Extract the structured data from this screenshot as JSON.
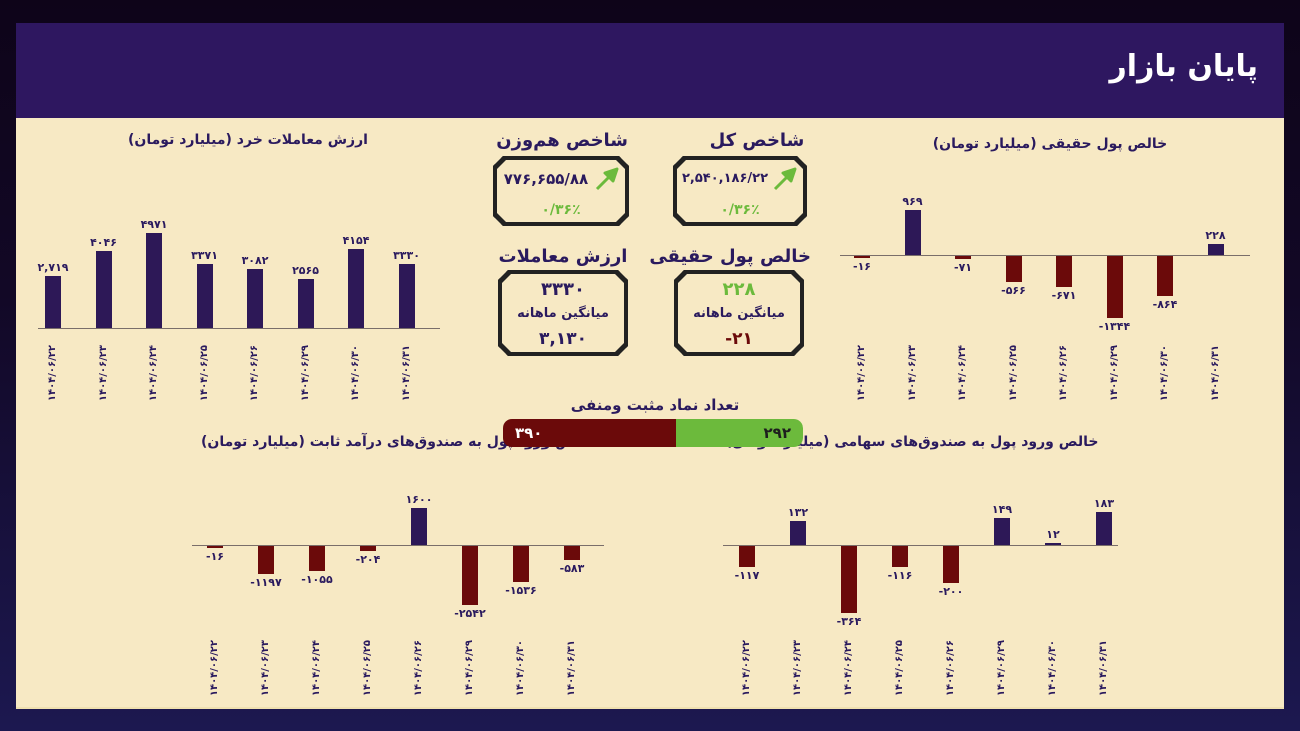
{
  "header": {
    "title": "پایان بازار"
  },
  "colors": {
    "header_bg": "#2e1760",
    "panel_bg": "#f7e9c4",
    "positive_bar": "#2d1857",
    "negative_bar": "#6b0a0a",
    "green": "#6cba3c",
    "text": "#2a1a5e"
  },
  "kpis": {
    "total_index": {
      "title": "شاخص کل",
      "value": "۲,۵۴۰,۱۸۶/۲۲",
      "change": "۰/۳۶٪",
      "icon": "arrow-up-right-icon"
    },
    "equal_weight_index": {
      "title": "شاخص هم‌وزن",
      "value": "۷۷۶,۶۵۵/۸۸",
      "change": "۰/۳۶٪",
      "icon": "arrow-up-right-icon"
    },
    "real_money": {
      "title": "خالص پول حقیقی",
      "value": "۲۲۸",
      "avg_label": "میانگین ماهانه",
      "avg_value": "-۲۱"
    },
    "trade_value": {
      "title": "ارزش معاملات",
      "value": "۳۳۳۰",
      "avg_label": "میانگین ماهانه",
      "avg_value": "۳,۱۳۰"
    }
  },
  "symbol_ratio": {
    "title": "تعداد نماد مثبت ومنفی",
    "negative": "۳۹۰",
    "positive": "۲۹۲",
    "negative_count": 390,
    "positive_count": 292
  },
  "chart_data": [
    {
      "id": "retail_trade_value",
      "type": "bar",
      "title": "ارزش معاملات خرد (میلیارد تومان)",
      "categories": [
        "۱۴۰۴/۰۶/۲۲",
        "۱۴۰۴/۰۶/۲۳",
        "۱۴۰۴/۰۶/۲۴",
        "۱۴۰۴/۰۶/۲۵",
        "۱۴۰۴/۰۶/۲۶",
        "۱۴۰۴/۰۶/۲۹",
        "۱۴۰۴/۰۶/۳۰",
        "۱۴۰۴/۰۶/۳۱"
      ],
      "values": [
        2719,
        4046,
        4971,
        3371,
        3082,
        2565,
        4154,
        3330
      ],
      "labels": [
        "۲,۷۱۹",
        "۴۰۴۶",
        "۴۹۷۱",
        "۳۳۷۱",
        "۳۰۸۲",
        "۲۵۶۵",
        "۴۱۵۴",
        "۳۳۳۰"
      ],
      "xlabel": "",
      "ylabel": "",
      "grid": false
    },
    {
      "id": "real_money_net",
      "type": "bar",
      "title": "خالص پول حقیقی (میلیارد تومان)",
      "categories": [
        "۱۴۰۴/۰۶/۲۲",
        "۱۴۰۴/۰۶/۲۳",
        "۱۴۰۴/۰۶/۲۴",
        "۱۴۰۴/۰۶/۲۵",
        "۱۴۰۴/۰۶/۲۶",
        "۱۴۰۴/۰۶/۲۹",
        "۱۴۰۴/۰۶/۳۰",
        "۱۴۰۴/۰۶/۳۱"
      ],
      "values": [
        -16,
        969,
        -71,
        -566,
        -671,
        -1344,
        -864,
        228
      ],
      "labels": [
        "-۱۶",
        "۹۶۹",
        "-۷۱",
        "-۵۶۶",
        "-۶۷۱",
        "-۱۳۴۴",
        "-۸۶۴",
        "۲۲۸"
      ],
      "xlabel": "",
      "ylabel": "",
      "grid": false
    },
    {
      "id": "fixed_income_fund_inflow",
      "type": "bar",
      "title": "خالص ورود پول به صندوق‌های درآمد ثابت (میلیارد تومان)",
      "categories": [
        "۱۴۰۴/۰۶/۲۲",
        "۱۴۰۴/۰۶/۲۳",
        "۱۴۰۴/۰۶/۲۴",
        "۱۴۰۴/۰۶/۲۵",
        "۱۴۰۴/۰۶/۲۶",
        "۱۴۰۴/۰۶/۲۹",
        "۱۴۰۴/۰۶/۳۰",
        "۱۴۰۴/۰۶/۳۱"
      ],
      "values": [
        -16,
        -1197,
        -1055,
        -204,
        1600,
        -2542,
        -1536,
        -583
      ],
      "labels": [
        "-۱۶",
        "-۱۱۹۷",
        "-۱۰۵۵",
        "-۲۰۴",
        "۱۶۰۰",
        "-۲۵۴۲",
        "-۱۵۳۶",
        "-۵۸۳"
      ],
      "xlabel": "",
      "ylabel": "",
      "grid": false
    },
    {
      "id": "equity_fund_inflow",
      "type": "bar",
      "title": "خالص ورود پول به صندوق‌های سهامی (میلیارد تومان)",
      "categories": [
        "۱۴۰۴/۰۶/۲۲",
        "۱۴۰۴/۰۶/۲۳",
        "۱۴۰۴/۰۶/۲۴",
        "۱۴۰۴/۰۶/۲۵",
        "۱۴۰۴/۰۶/۲۶",
        "۱۴۰۴/۰۶/۲۹",
        "۱۴۰۴/۰۶/۳۰",
        "۱۴۰۴/۰۶/۳۱"
      ],
      "values": [
        -117,
        132,
        -364,
        -116,
        -200,
        149,
        12,
        183
      ],
      "labels": [
        "-۱۱۷",
        "۱۳۲",
        "-۳۶۴",
        "-۱۱۶",
        "-۲۰۰",
        "۱۴۹",
        "۱۲",
        "۱۸۳"
      ],
      "xlabel": "",
      "ylabel": "",
      "grid": false
    }
  ]
}
